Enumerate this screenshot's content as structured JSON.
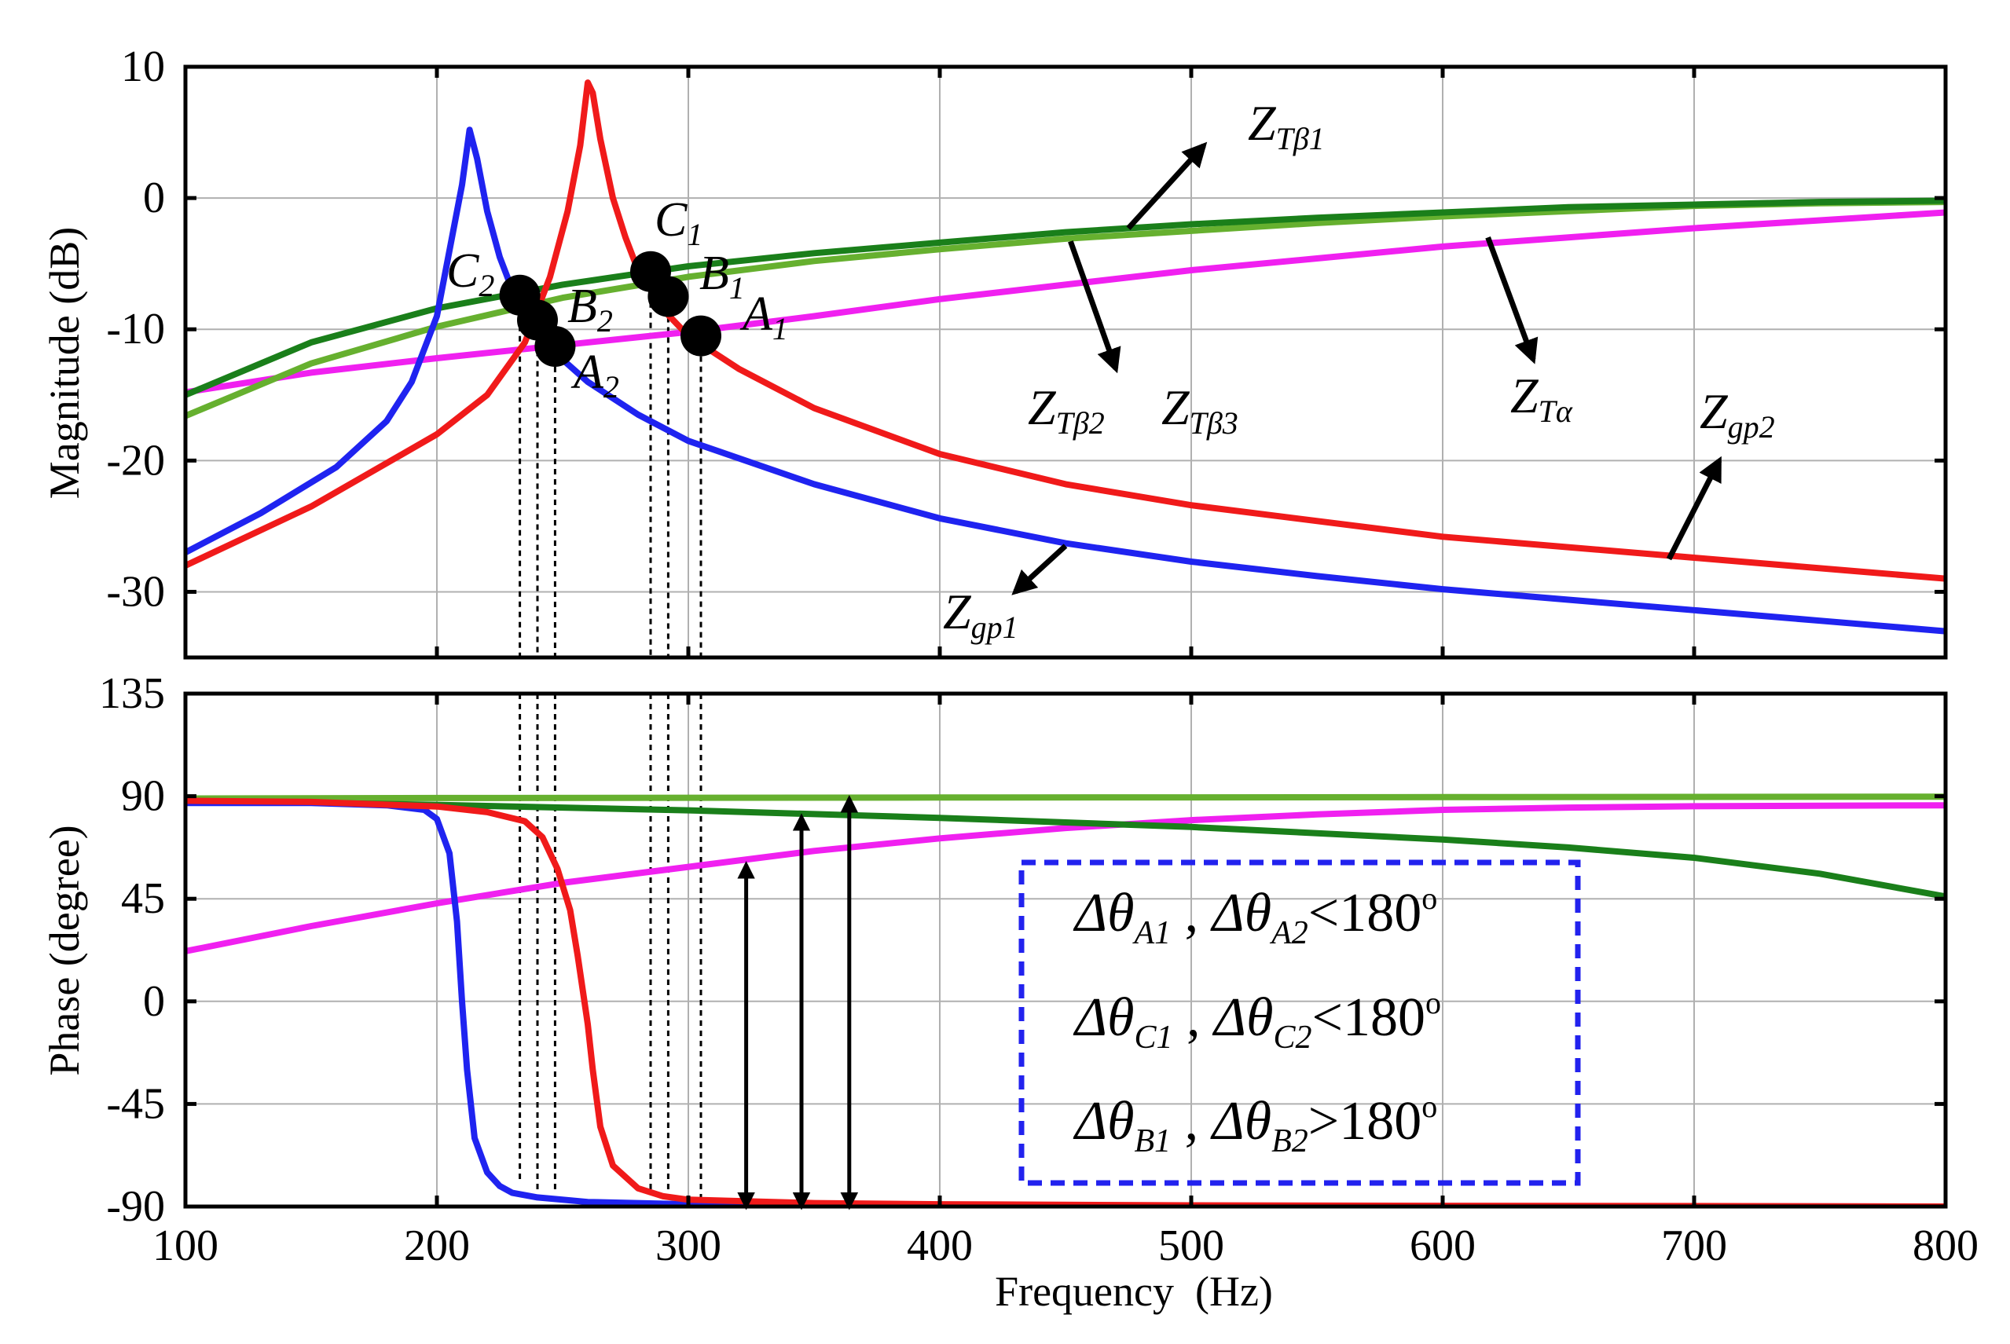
{
  "colors": {
    "Z_gp1": "#1f23f0",
    "Z_gp2": "#f01a1a",
    "Z_Tbeta1": "#1a7f1a",
    "Z_Tbeta23": "#66b02f",
    "Z_Talpha": "#f020f0",
    "grid": "#b0b0b0",
    "box": "#2222ee",
    "point": "#000000"
  },
  "chart_data": [
    {
      "type": "line",
      "panel": "magnitude",
      "ylabel": "Magnitude (dB)",
      "xlabel": "",
      "xlim": [
        100,
        800
      ],
      "ylim": [
        -35,
        10
      ],
      "xticks": [
        100,
        200,
        300,
        400,
        500,
        600,
        700,
        800
      ],
      "yticks": [
        10,
        0,
        -10,
        -20,
        -30
      ],
      "ytick_labels": [
        "10",
        "0",
        "-10",
        "-20",
        "-30"
      ],
      "grid": true,
      "series": [
        {
          "name": "Z_gp1",
          "color_key": "Z_gp1",
          "x": [
            100,
            130,
            160,
            180,
            190,
            200,
            205,
            210,
            213,
            216,
            220,
            225,
            230,
            235,
            240,
            250,
            260,
            280,
            300,
            350,
            400,
            450,
            500,
            550,
            600,
            650,
            700,
            750,
            800
          ],
          "y": [
            -27,
            -24,
            -20.5,
            -17,
            -14,
            -9,
            -4,
            1,
            5.2,
            3,
            -1,
            -4.5,
            -7,
            -9,
            -10.5,
            -12.3,
            -14,
            -16.5,
            -18.5,
            -21.8,
            -24.4,
            -26.3,
            -27.7,
            -28.8,
            -29.8,
            -30.6,
            -31.4,
            -32.2,
            -33
          ]
        },
        {
          "name": "Z_gp2",
          "color_key": "Z_gp2",
          "x": [
            100,
            150,
            200,
            220,
            235,
            245,
            252,
            257,
            260,
            262,
            265,
            270,
            275,
            280,
            290,
            300,
            320,
            350,
            400,
            450,
            500,
            600,
            700,
            800
          ],
          "y": [
            -28,
            -23.5,
            -18,
            -15,
            -11,
            -6,
            -1,
            4,
            8.8,
            8,
            4.5,
            0,
            -3,
            -5.5,
            -8.5,
            -10.5,
            -13,
            -16,
            -19.5,
            -21.8,
            -23.4,
            -25.8,
            -27.4,
            -29
          ]
        },
        {
          "name": "Z_Tbeta1",
          "color_key": "Z_Tbeta1",
          "x": [
            100,
            150,
            200,
            250,
            300,
            350,
            400,
            450,
            500,
            550,
            600,
            650,
            700,
            750,
            800
          ],
          "y": [
            -15,
            -11,
            -8.4,
            -6.6,
            -5.2,
            -4.2,
            -3.4,
            -2.6,
            -2,
            -1.5,
            -1.1,
            -0.7,
            -0.5,
            -0.3,
            -0.2
          ]
        },
        {
          "name": "Z_Tbeta23",
          "color_key": "Z_Tbeta23",
          "x": [
            100,
            150,
            200,
            250,
            300,
            350,
            400,
            450,
            500,
            550,
            600,
            650,
            700,
            750,
            800
          ],
          "y": [
            -16.6,
            -12.6,
            -9.8,
            -7.6,
            -6,
            -4.8,
            -3.9,
            -3.1,
            -2.5,
            -1.9,
            -1.4,
            -1,
            -0.6,
            -0.4,
            -0.3
          ]
        },
        {
          "name": "Z_Talpha",
          "color_key": "Z_Talpha",
          "x": [
            100,
            150,
            200,
            250,
            300,
            350,
            400,
            450,
            500,
            550,
            600,
            650,
            700,
            750,
            800
          ],
          "y": [
            -14.8,
            -13.3,
            -12.2,
            -11.2,
            -10.2,
            -9,
            -7.7,
            -6.6,
            -5.5,
            -4.6,
            -3.7,
            -3,
            -2.3,
            -1.7,
            -1.1
          ]
        }
      ],
      "points": [
        {
          "name": "C2",
          "x": 233,
          "y": -7.4
        },
        {
          "name": "B2",
          "x": 240,
          "y": -9.3
        },
        {
          "name": "A2",
          "x": 247,
          "y": -11.3
        },
        {
          "name": "C1",
          "x": 285,
          "y": -5.6
        },
        {
          "name": "B1",
          "x": 292,
          "y": -7.5
        },
        {
          "name": "A1",
          "x": 305,
          "y": -10.5
        }
      ],
      "annotations": [
        {
          "main": "Z",
          "sub": "Tβ1",
          "x": 510,
          "y": 5.5,
          "arrow_from": [
            475,
            -2.3
          ],
          "arrow_to": [
            505,
            4
          ]
        },
        {
          "main": "Z",
          "sub": "Tβ2",
          "x": 425,
          "y": -16.6,
          "arrow_from": [
            452,
            -3.3
          ],
          "arrow_to": [
            470,
            -13
          ]
        },
        {
          "main": "Z",
          "sub": "Tβ3",
          "x": 478,
          "y": -16.6
        },
        {
          "main": "Z",
          "sub": "Tα",
          "x": 630,
          "y": -15.5,
          "arrow_from": [
            618,
            -3
          ],
          "arrow_to": [
            636,
            -12.3
          ]
        },
        {
          "main": "Z",
          "sub": "gp2",
          "x": 700,
          "y": -17.6,
          "arrow_from": [
            690,
            -27.5
          ],
          "arrow_to": [
            710,
            -20
          ]
        },
        {
          "main": "Z",
          "sub": "gp1",
          "x": 392,
          "y": -33.2,
          "arrow_from": [
            450,
            -26.5
          ],
          "arrow_to": [
            430,
            -30
          ]
        }
      ],
      "point_labels": [
        {
          "main": "C",
          "sub": "2"
        },
        {
          "main": "B",
          "sub": "2"
        },
        {
          "main": "A",
          "sub": "2"
        },
        {
          "main": "C",
          "sub": "1"
        },
        {
          "main": "B",
          "sub": "1"
        },
        {
          "main": "A",
          "sub": "1"
        }
      ]
    },
    {
      "type": "line",
      "panel": "phase",
      "ylabel": "Phase (degree)",
      "xlabel": "Frequency  (Hz)",
      "xlim": [
        100,
        800
      ],
      "ylim": [
        -90,
        135
      ],
      "xticks": [
        100,
        200,
        300,
        400,
        500,
        600,
        700,
        800
      ],
      "xtick_labels": [
        "100",
        "200",
        "300",
        "400",
        "500",
        "600",
        "700",
        "800"
      ],
      "yticks": [
        135,
        90,
        45,
        0,
        -45,
        -90
      ],
      "ytick_labels": [
        "135",
        "90",
        "45",
        "0",
        "-45",
        "-90"
      ],
      "grid": true,
      "series": [
        {
          "name": "Z_gp1",
          "color_key": "Z_gp1",
          "x": [
            100,
            150,
            180,
            195,
            200,
            205,
            208,
            210,
            212,
            215,
            220,
            225,
            230,
            240,
            260,
            300,
            400,
            500,
            600,
            700,
            800
          ],
          "y": [
            87,
            87,
            86,
            84,
            80,
            65,
            35,
            0,
            -30,
            -60,
            -75,
            -81,
            -84,
            -86,
            -88,
            -89,
            -89.5,
            -89.7,
            -89.8,
            -89.9,
            -90
          ]
        },
        {
          "name": "Z_gp2",
          "color_key": "Z_gp2",
          "x": [
            100,
            150,
            200,
            220,
            235,
            242,
            248,
            253,
            256,
            258,
            260,
            262,
            265,
            270,
            280,
            290,
            300,
            350,
            400,
            500,
            600,
            700,
            800
          ],
          "y": [
            88,
            87.5,
            85.5,
            83,
            79,
            72,
            58,
            40,
            20,
            5,
            -10,
            -30,
            -55,
            -72,
            -82,
            -85.5,
            -87,
            -88.5,
            -89,
            -89.5,
            -89.7,
            -89.8,
            -90
          ]
        },
        {
          "name": "Z_Tbeta1",
          "color_key": "Z_Tbeta1",
          "x": [
            100,
            200,
            300,
            400,
            500,
            600,
            650,
            700,
            750,
            800
          ],
          "y": [
            88,
            86.2,
            83.8,
            80.5,
            76.5,
            71,
            67.5,
            63,
            56,
            46
          ]
        },
        {
          "name": "Z_Tbeta23",
          "color_key": "Z_Tbeta23",
          "x": [
            100,
            200,
            300,
            400,
            500,
            600,
            700,
            800
          ],
          "y": [
            89,
            89.2,
            89.3,
            89.4,
            89.5,
            89.6,
            89.7,
            89.8
          ]
        },
        {
          "name": "Z_Talpha",
          "color_key": "Z_Talpha",
          "x": [
            100,
            150,
            200,
            250,
            300,
            350,
            400,
            450,
            500,
            550,
            600,
            650,
            700,
            750,
            800
          ],
          "y": [
            22,
            33,
            43,
            52,
            59,
            66,
            71.5,
            76,
            79.5,
            82,
            84,
            85,
            85.6,
            85.8,
            86
          ]
        }
      ],
      "delta_arrows": [
        {
          "x": 323,
          "y_from": -90,
          "y_to": 60
        },
        {
          "x": 345,
          "y_from": -90,
          "y_to": 81
        },
        {
          "x": 364,
          "y_from": -90,
          "y_to": 89
        }
      ],
      "legend_box": {
        "position": "center-right",
        "lines": [
          {
            "p1": "Δθ",
            "s1": "A1",
            "sep": " , ",
            "p2": "Δθ",
            "s2": "A2",
            "cmp": "<180",
            "sup": "o"
          },
          {
            "p1": "Δθ",
            "s1": "C1",
            "sep": " , ",
            "p2": "Δθ",
            "s2": "C2",
            "cmp": "<180",
            "sup": "o"
          },
          {
            "p1": "Δθ",
            "s1": "B1",
            "sep": " , ",
            "p2": "Δθ",
            "s2": "B2",
            "cmp": ">180",
            "sup": "o"
          }
        ]
      }
    }
  ]
}
